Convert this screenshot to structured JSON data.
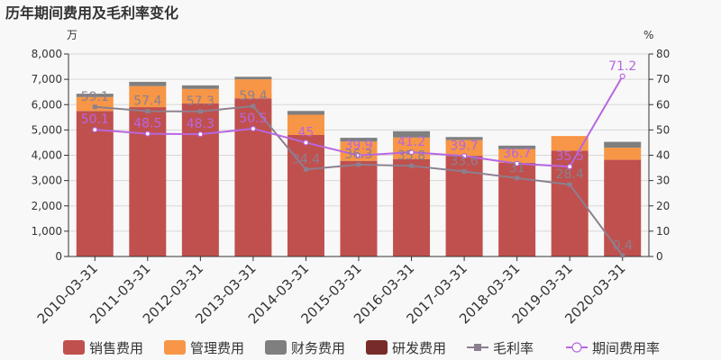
{
  "title": "历年期间费用及毛利率变化",
  "chart_data": {
    "type": "bar",
    "title": "历年期间费用及毛利率变化",
    "left_unit": "万",
    "right_unit": "%",
    "categories": [
      "2010-03-31",
      "2011-03-31",
      "2012-03-31",
      "2013-03-31",
      "2014-03-31",
      "2015-03-31",
      "2016-03-31",
      "2017-03-31",
      "2018-03-31",
      "2019-03-31",
      "2020-03-31"
    ],
    "ylim_left": [
      0,
      8000
    ],
    "yticks_left": [
      "0",
      "1,000",
      "2,000",
      "3,000",
      "4,000",
      "5,000",
      "6,000",
      "7,000",
      "8,000"
    ],
    "ylim_right": [
      0,
      80
    ],
    "yticks_right": [
      "0",
      "10",
      "20",
      "30",
      "40",
      "50",
      "60",
      "70",
      "80"
    ],
    "stacked_series": [
      {
        "name": "销售费用",
        "color": "#c0504d",
        "values": [
          5750,
          5900,
          6050,
          6250,
          4800,
          3780,
          3850,
          3980,
          3700,
          4180,
          3820
        ]
      },
      {
        "name": "管理费用",
        "color": "#f79646",
        "values": [
          550,
          830,
          570,
          750,
          800,
          760,
          850,
          620,
          540,
          580,
          480
        ]
      },
      {
        "name": "财务费用",
        "color": "#7f7f7f",
        "values": [
          130,
          170,
          140,
          100,
          150,
          150,
          250,
          120,
          140,
          0,
          230
        ]
      },
      {
        "name": "研发费用",
        "color": "#772c2a",
        "values": [
          0,
          0,
          0,
          0,
          0,
          0,
          0,
          0,
          0,
          0,
          0
        ]
      }
    ],
    "line_series": [
      {
        "name": "毛利率",
        "color": "#8c7f8f",
        "marker": "square",
        "values": [
          59.1,
          57.4,
          57.3,
          59.4,
          34.4,
          36.3,
          35.8,
          33.6,
          31.0,
          28.4,
          0.4
        ],
        "labels": [
          "59.1",
          "57.4",
          "57.3",
          "59.4",
          "34.4",
          "36.3",
          "35.8",
          "33.6",
          "31",
          "28.4",
          "0.4"
        ]
      },
      {
        "name": "期间费用率",
        "color": "#b866e0",
        "marker": "circle",
        "values": [
          50.1,
          48.5,
          48.3,
          50.5,
          45.0,
          39.9,
          41.2,
          39.7,
          36.7,
          35.5,
          71.2
        ],
        "labels": [
          "50.1",
          "48.5",
          "48.3",
          "50.5",
          "45",
          "39.9",
          "41.2",
          "39.7",
          "36.7",
          "35.5",
          "71.2"
        ]
      }
    ],
    "legend": {
      "placement": "bottom"
    },
    "grid": true
  }
}
